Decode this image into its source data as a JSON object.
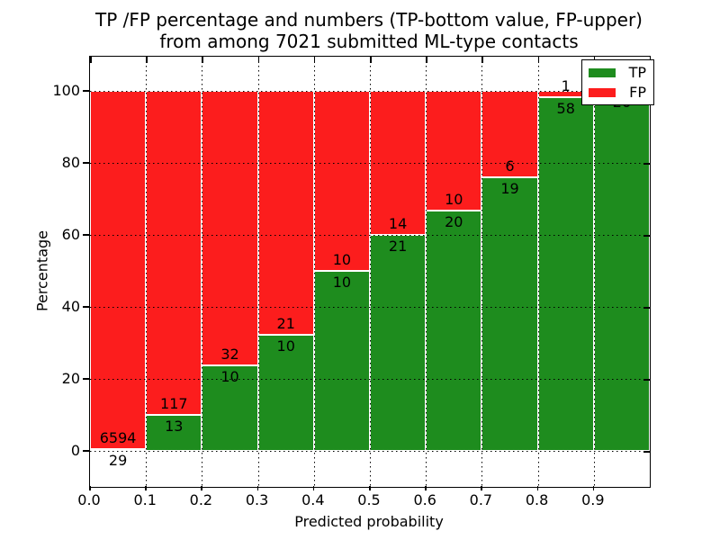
{
  "figure": {
    "background": "#ffffff",
    "title_line1": "TP /FP percentage and numbers (TP-bottom value, FP-upper)",
    "title_line2": "from among 7021 submitted ML-type contacts"
  },
  "chart_data": {
    "type": "bar",
    "stacked": true,
    "orientation": "vertical",
    "title": "TP /FP percentage and numbers (TP-bottom value, FP-upper) from among 7021 submitted ML-type contacts",
    "xlabel": "Predicted probability",
    "ylabel": "Percentage",
    "total_contacts": 7021,
    "bin_width": 0.1,
    "x_bin_starts": [
      0.0,
      0.1,
      0.2,
      0.3,
      0.4,
      0.5,
      0.6,
      0.7,
      0.8,
      0.9
    ],
    "xtick_labels": [
      "0.0",
      "0.1",
      "0.2",
      "0.3",
      "0.4",
      "0.5",
      "0.6",
      "0.7",
      "0.8",
      "0.9"
    ],
    "ytick_values": [
      0,
      20,
      40,
      60,
      80,
      100
    ],
    "xlim": [
      0.0,
      1.0
    ],
    "ylim": [
      -10,
      109.5
    ],
    "grid": {
      "visible": true,
      "linestyle": "dotted",
      "color": "#000000"
    },
    "bar_edge_color": "#ffffff",
    "series": [
      {
        "name": "TP",
        "color": "#1e8c1e",
        "counts": [
          29,
          13,
          10,
          10,
          10,
          21,
          20,
          19,
          58,
          26
        ]
      },
      {
        "name": "FP",
        "color": "#fc1d1d",
        "counts": [
          6594,
          117,
          32,
          21,
          10,
          14,
          10,
          6,
          1,
          0
        ]
      }
    ],
    "tp_percentages": [
      0.44,
      10.0,
      23.81,
      32.26,
      50.0,
      60.0,
      66.67,
      76.0,
      98.31,
      100.0
    ],
    "legend": {
      "position": "upper right",
      "entries": [
        {
          "label": "TP",
          "color": "#1e8c1e"
        },
        {
          "label": "FP",
          "color": "#fc1d1d"
        }
      ]
    }
  }
}
